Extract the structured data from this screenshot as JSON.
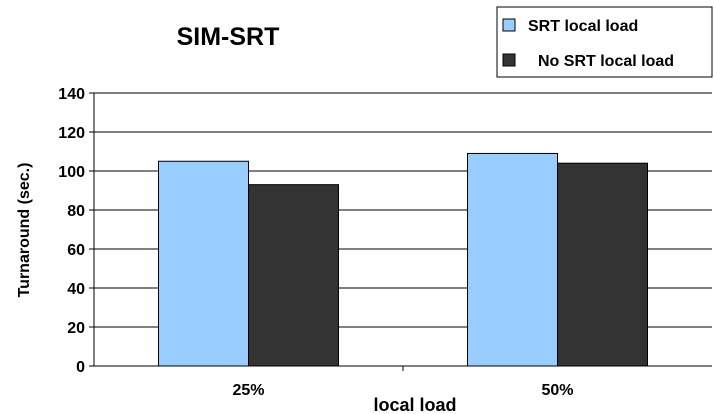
{
  "chart_data": {
    "type": "bar",
    "title": "SIM-SRT",
    "xlabel": "local load",
    "ylabel": "Turnaround (sec.)",
    "categories": [
      "25%",
      "50%"
    ],
    "ylim": [
      0,
      140
    ],
    "yticks": [
      0,
      20,
      40,
      60,
      80,
      100,
      120,
      140
    ],
    "grid": true,
    "legend_position": "top-right",
    "series": [
      {
        "name": "SRT local load",
        "color": "#99ccff",
        "values": [
          105,
          109
        ]
      },
      {
        "name": "No SRT local load",
        "color": "#333333",
        "values": [
          93,
          104
        ]
      }
    ]
  }
}
